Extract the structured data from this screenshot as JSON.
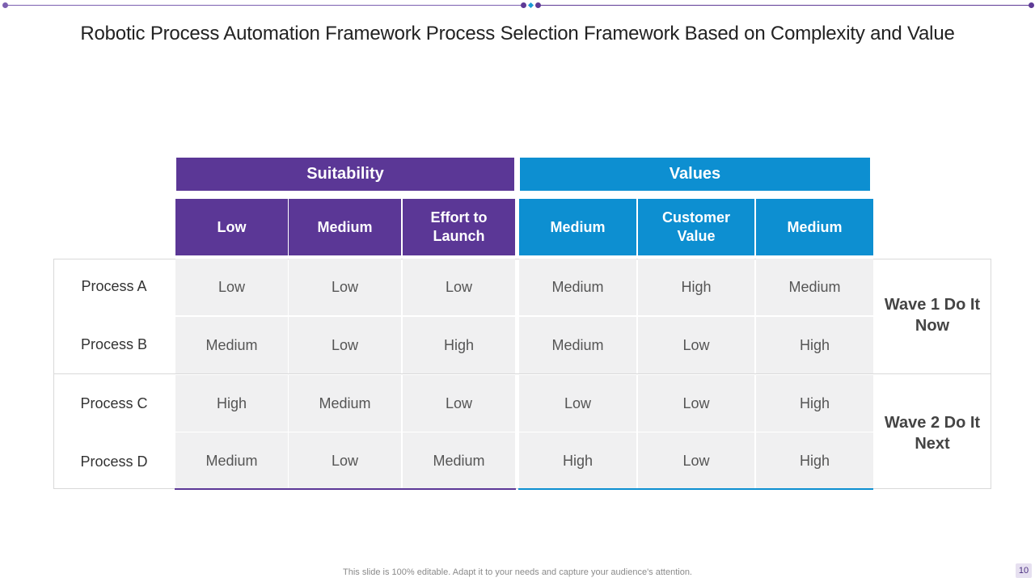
{
  "slide": {
    "title": "Robotic Process Automation Framework Process Selection Framework Based on Complexity and Value",
    "footer": "This slide is 100% editable. Adapt it to your needs and capture your audience's attention.",
    "page_number": "10"
  },
  "colors": {
    "purple": "#5b3796",
    "blue": "#0d8fd1",
    "cell_bg": "#f0f0f1"
  },
  "table": {
    "groups": {
      "suitability": "Suitability",
      "values": "Values"
    },
    "columns": [
      "Low",
      "Medium",
      "Effort to Launch",
      "Medium",
      "Customer Value",
      "Medium"
    ],
    "rows": [
      {
        "label": "Process A",
        "cells": [
          "Low",
          "Low",
          "Low",
          "Medium",
          "High",
          "Medium"
        ]
      },
      {
        "label": "Process B",
        "cells": [
          "Medium",
          "Low",
          "High",
          "Medium",
          "Low",
          "High"
        ]
      },
      {
        "label": "Process C",
        "cells": [
          "High",
          "Medium",
          "Low",
          "Low",
          "Low",
          "High"
        ]
      },
      {
        "label": "Process D",
        "cells": [
          "Medium",
          "Low",
          "Medium",
          "High",
          "Low",
          "High"
        ]
      }
    ],
    "waves": [
      "Wave 1 Do It Now",
      "Wave 2 Do It Next"
    ]
  }
}
